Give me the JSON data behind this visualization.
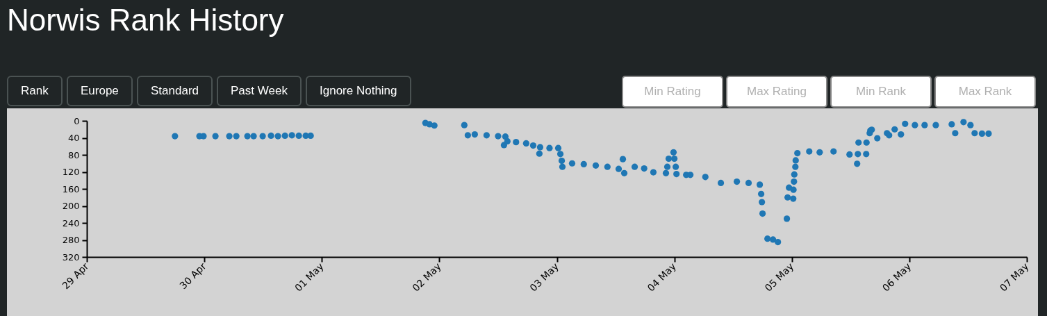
{
  "chart_data": {
    "type": "scatter",
    "title": "Norwis Rank History",
    "annotations": [
      "Rank",
      "Europe",
      "Standard",
      "Past Week",
      "Ignore Nothing",
      "Min Rating",
      "Max Rating",
      "Min Rank",
      "Max Rank"
    ],
    "x": [
      "--04-29T18:00",
      "--04-29T23:00",
      "--04-29T23:50",
      "--04-30T02:16",
      "--04-30T05:06",
      "--04-30T06:32",
      "--04-30T08:48",
      "--04-30T10:04",
      "--04-30T11:55",
      "--04-30T13:37",
      "--04-30T15:02",
      "--04-30T16:28",
      "--04-30T17:53",
      "--04-30T19:18",
      "--04-30T20:43",
      "--04-30T21:43",
      "--05-01T21:09",
      "--05-01T22:00",
      "--05-01T22:59",
      "--05-02T05:06",
      "--05-02T05:49",
      "--05-02T07:14",
      "--05-02T09:39",
      "--05-02T12:00",
      "--05-02T13:12",
      "--05-02T13:29",
      "--05-02T13:54",
      "--05-02T15:40",
      "--05-02T17:44",
      "--05-02T19:10",
      "--05-02T20:26",
      "--05-02T20:35",
      "--05-02T22:30",
      "--05-03T00:17",
      "--05-03T00:43",
      "--05-03T01:00",
      "--05-03T01:08",
      "--05-03T03:07",
      "--05-03T05:30",
      "--05-03T07:57",
      "--05-03T10:20",
      "--05-03T12:38",
      "--05-03T13:29",
      "--05-03T13:46",
      "--05-03T15:54",
      "--05-03T17:50",
      "--05-03T19:43",
      "--05-03T22:17",
      "--05-03T22:34",
      "--05-03T22:51",
      "--05-03T23:50",
      "--05-04T00:00",
      "--05-04T00:17",
      "--05-04T00:26",
      "--05-04T02:25",
      "--05-04T03:16",
      "--05-04T06:20",
      "--05-04T09:30",
      "--05-04T12:46",
      "--05-04T15:10",
      "--05-04T17:27",
      "--05-04T17:44",
      "--05-04T17:53",
      "--05-04T18:01",
      "--05-04T19:01",
      "--05-04T20:09",
      "--05-04T21:09",
      "--05-04T22:59",
      "--05-04T23:08",
      "--05-04T23:25",
      "--05-05T00:17",
      "--05-05T00:20",
      "--05-05T00:26",
      "--05-05T00:30",
      "--05-05T00:43",
      "--05-05T00:47",
      "--05-05T01:08",
      "--05-05T03:33",
      "--05-05T05:41",
      "--05-05T08:31",
      "--05-05T11:47",
      "--05-05T13:20",
      "--05-05T13:29",
      "--05-05T13:37",
      "--05-05T15:11",
      "--05-05T15:15",
      "--05-05T15:54",
      "--05-05T16:02",
      "--05-05T16:19",
      "--05-05T17:27",
      "--05-05T19:26",
      "--05-05T19:52",
      "--05-05T21:00",
      "--05-05T22:17",
      "--05-05T23:08",
      "--05-06T01:08",
      "--05-06T03:07",
      "--05-06T05:24",
      "--05-06T08:39",
      "--05-06T09:22",
      "--05-06T11:04",
      "--05-06T12:29",
      "--05-06T13:20",
      "--05-06T14:50",
      "--05-06T16:11"
    ],
    "series": [
      {
        "color": "#1f77b4",
        "values": [
          36,
          36,
          36,
          36,
          36,
          36,
          36,
          36,
          36,
          35,
          36,
          35,
          34,
          35,
          35,
          35,
          5,
          8,
          11,
          10,
          34,
          32,
          34,
          36,
          57,
          37,
          48,
          50,
          53,
          58,
          77,
          62,
          64,
          64,
          78,
          94,
          108,
          100,
          102,
          105,
          108,
          113,
          90,
          123,
          108,
          112,
          121,
          123,
          108,
          89,
          74,
          89,
          108,
          125,
          127,
          127,
          132,
          146,
          143,
          146,
          150,
          172,
          191,
          218,
          277,
          279,
          285,
          230,
          180,
          157,
          183,
          162,
          143,
          126,
          108,
          93,
          76,
          72,
          74,
          72,
          79,
          101,
          78,
          51,
          78,
          51,
          29,
          23,
          21,
          41,
          29,
          34,
          20,
          32,
          7,
          10,
          10,
          10,
          8,
          29,
          3,
          10,
          29,
          30,
          30
        ]
      }
    ],
    "marker": "circle",
    "ylim": [
      320,
      0
    ],
    "yticks": [
      0,
      40,
      80,
      120,
      160,
      200,
      240,
      280,
      320
    ],
    "xlim": [
      "--04-29",
      "--05-07"
    ],
    "xticks": [
      {
        "value": "--04-29",
        "label": "29 Apr"
      },
      {
        "value": "--04-30",
        "label": "30 Apr"
      },
      {
        "value": "--05-01",
        "label": "01 May"
      },
      {
        "value": "--05-02",
        "label": "02 May"
      },
      {
        "value": "--05-03",
        "label": "03 May"
      },
      {
        "value": "--05-04",
        "label": "04 May"
      },
      {
        "value": "--05-05",
        "label": "05 May"
      },
      {
        "value": "--05-06",
        "label": "06 May"
      },
      {
        "value": "--05-07",
        "label": "07 May"
      }
    ],
    "grid": false
  }
}
